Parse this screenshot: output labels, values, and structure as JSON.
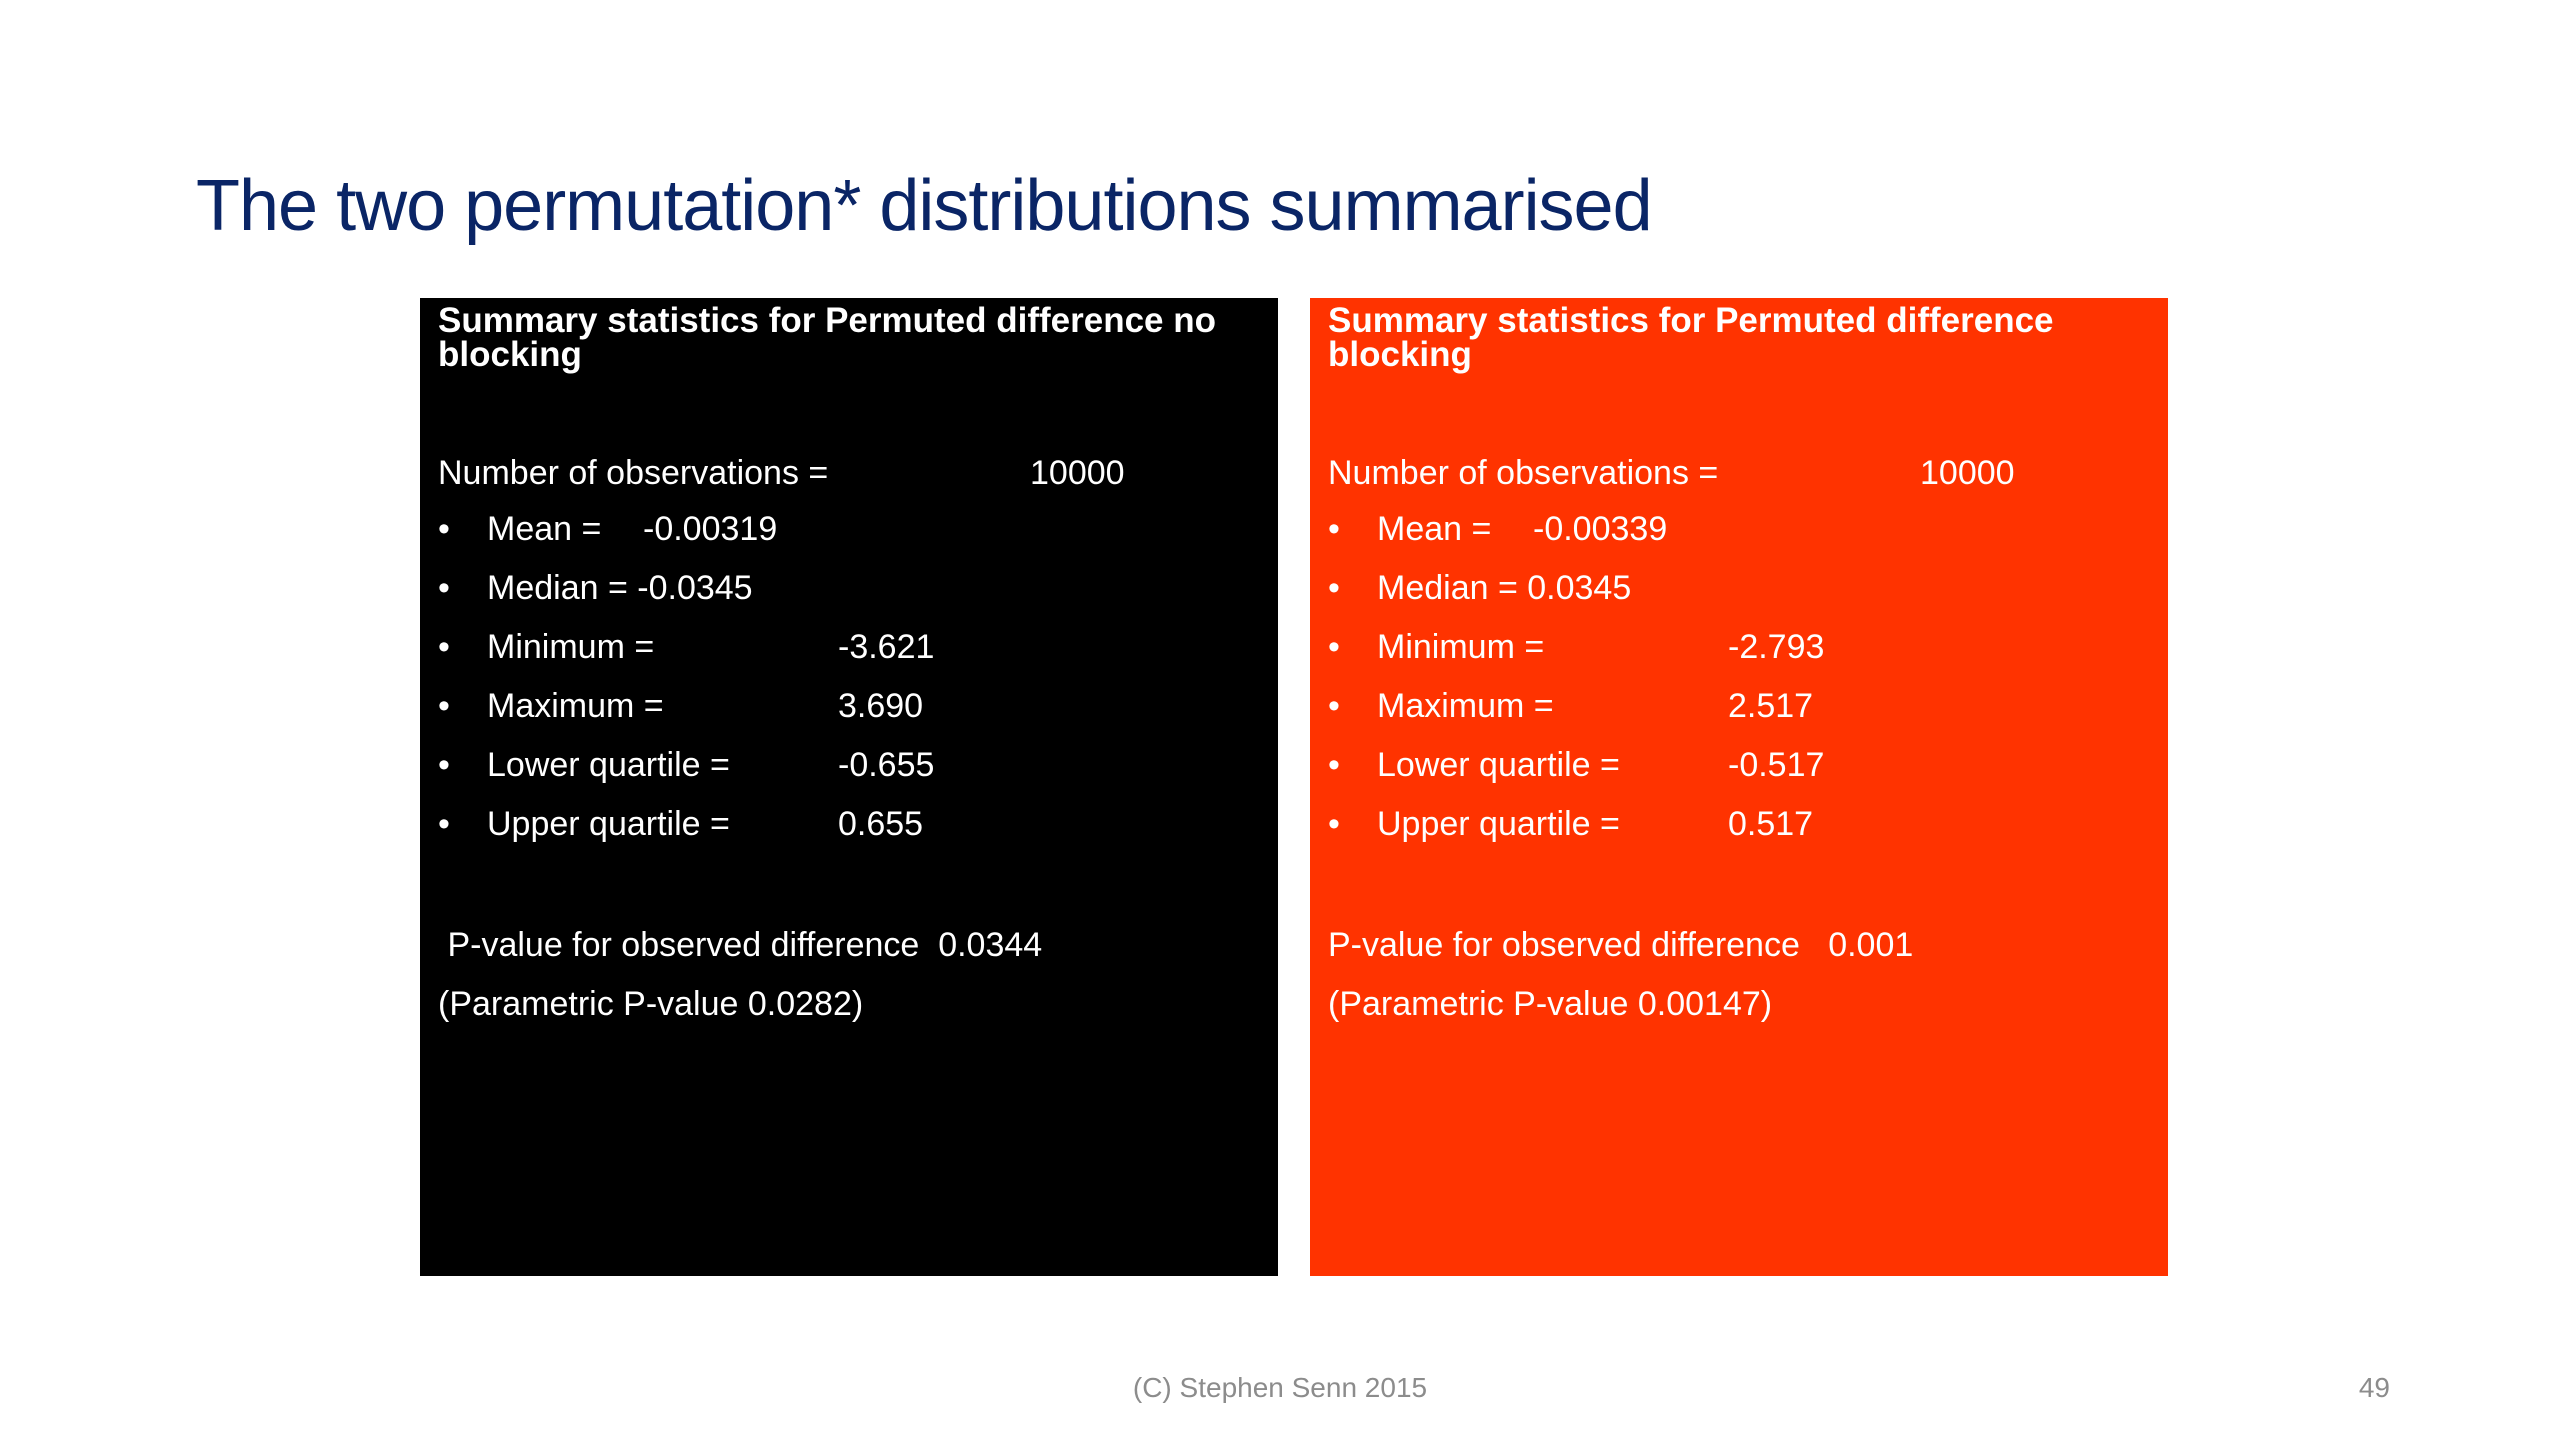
{
  "slide": {
    "title": "The two permutation* distributions summarised",
    "footer": "(C) Stephen Senn 2015",
    "page_number": "49"
  },
  "colors": {
    "title": "#0a2566",
    "left_panel_bg": "#000000",
    "right_panel_bg": "#ff3300",
    "panel_text": "#ffffff"
  },
  "panels": {
    "left": {
      "heading": "Summary statistics for Permuted difference no blocking",
      "obs_label": "Number of observations =",
      "obs_value": "10000",
      "stats": [
        {
          "label": "Mean =",
          "value": "-0.00319"
        },
        {
          "label": "Median = -0.0345",
          "value": ""
        },
        {
          "label": "Minimum =",
          "value": "-3.621"
        },
        {
          "label": "Maximum =",
          "value": "3.690"
        },
        {
          "label": "Lower quartile =",
          "value": "-0.655"
        },
        {
          "label": "Upper quartile =",
          "value": "0.655"
        }
      ],
      "pvalue_text": " P-value for observed difference  0.0344",
      "parametric_text": "(Parametric P-value 0.0282)"
    },
    "right": {
      "heading": "Summary statistics for Permuted difference blocking",
      "obs_label": "Number of observations =",
      "obs_value": "10000",
      "stats": [
        {
          "label": "Mean =",
          "value": "-0.00339"
        },
        {
          "label": "Median = 0.0345",
          "value": ""
        },
        {
          "label": "Minimum =",
          "value": "-2.793"
        },
        {
          "label": "Maximum =",
          "value": "2.517"
        },
        {
          "label": "Lower quartile =",
          "value": "-0.517"
        },
        {
          "label": "Upper quartile =",
          "value": "0.517"
        }
      ],
      "pvalue_text": "P-value for observed difference   0.001",
      "parametric_text": "(Parametric P-value 0.00147)"
    }
  }
}
